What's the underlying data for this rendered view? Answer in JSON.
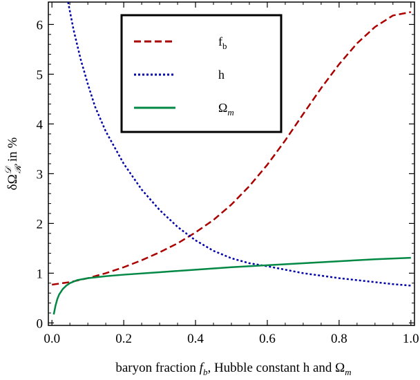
{
  "chart_data": {
    "type": "line",
    "title": "",
    "xlabel": {
      "main": "baryon fraction ",
      "fb_symbol": "f",
      "fb_sub": "b",
      "mid": ", Hubble constant h and ",
      "omega_symbol": "Ω",
      "omega_sub": "m"
    },
    "ylabel": {
      "prefix": "δΩ",
      "sup": "𝒟",
      "sub": "ℛ",
      "suffix": " in %"
    },
    "xlim": [
      -0.01,
      1.01
    ],
    "ylim": [
      -0.05,
      6.45
    ],
    "xticks": [
      0.0,
      0.2,
      0.4,
      0.6,
      0.8,
      1.0
    ],
    "xtick_labels": [
      "0.0",
      "0.2",
      "0.4",
      "0.6",
      "0.8",
      "1.0"
    ],
    "yticks": [
      0,
      1,
      2,
      3,
      4,
      5,
      6
    ],
    "ytick_labels": [
      "0",
      "1",
      "2",
      "3",
      "4",
      "5",
      "6"
    ],
    "grid": false,
    "legend_position": "top-center",
    "series": [
      {
        "name": "f",
        "name_sub": "b",
        "color": "#aa0000",
        "dash": "dashed",
        "x": [
          0.0,
          0.05,
          0.1,
          0.15,
          0.2,
          0.25,
          0.3,
          0.35,
          0.4,
          0.45,
          0.5,
          0.55,
          0.6,
          0.65,
          0.7,
          0.75,
          0.8,
          0.85,
          0.9,
          0.95,
          1.0
        ],
        "y": [
          0.77,
          0.82,
          0.9,
          1.0,
          1.12,
          1.26,
          1.42,
          1.6,
          1.82,
          2.07,
          2.38,
          2.75,
          3.18,
          3.67,
          4.2,
          4.72,
          5.2,
          5.62,
          5.95,
          6.18,
          6.25
        ]
      },
      {
        "name": "h",
        "name_sub": "",
        "color": "#0000aa",
        "dash": "dotted",
        "x": [
          0.045,
          0.06,
          0.08,
          0.1,
          0.12,
          0.15,
          0.2,
          0.25,
          0.3,
          0.35,
          0.4,
          0.45,
          0.5,
          0.55,
          0.6,
          0.65,
          0.7,
          0.75,
          0.8,
          0.85,
          0.9,
          0.95,
          1.0
        ],
        "y": [
          6.45,
          5.9,
          5.3,
          4.8,
          4.35,
          3.85,
          3.2,
          2.68,
          2.27,
          1.93,
          1.66,
          1.45,
          1.3,
          1.2,
          1.14,
          1.07,
          1.0,
          0.95,
          0.9,
          0.86,
          0.82,
          0.78,
          0.75
        ]
      },
      {
        "name": "Ω",
        "name_sub": "m",
        "color": "#008844",
        "dash": "solid",
        "x": [
          0.005,
          0.01,
          0.015,
          0.02,
          0.03,
          0.04,
          0.05,
          0.07,
          0.1,
          0.15,
          0.2,
          0.3,
          0.4,
          0.5,
          0.6,
          0.7,
          0.8,
          0.9,
          1.0
        ],
        "y": [
          0.17,
          0.35,
          0.48,
          0.57,
          0.68,
          0.75,
          0.8,
          0.86,
          0.9,
          0.94,
          0.97,
          1.02,
          1.07,
          1.12,
          1.16,
          1.2,
          1.24,
          1.28,
          1.31
        ]
      }
    ]
  }
}
